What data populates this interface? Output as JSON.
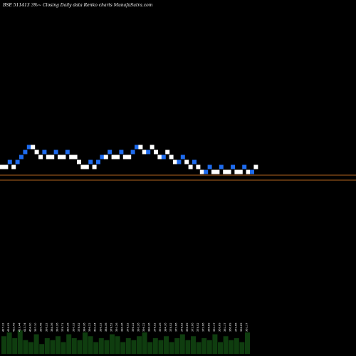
{
  "title": "BSE 511413 3%~   Closing Daily data  Renko  charts MunafaSutra.com",
  "colors": {
    "background": "#000000",
    "up_brick": "#ffffff",
    "down_brick": "#1e6cf0",
    "reference_line": "#b4641e",
    "volume_bar": "#0f3d0f",
    "text": "#ffffff"
  },
  "chart_data": {
    "type": "renko",
    "brick_levels": [
      10,
      10,
      11,
      10,
      11,
      12,
      13,
      14,
      14,
      13,
      12,
      13,
      12,
      12,
      13,
      12,
      12,
      13,
      12,
      12,
      11,
      10,
      10,
      11,
      10,
      11,
      12,
      12,
      13,
      12,
      12,
      13,
      12,
      12,
      13,
      14,
      14,
      13,
      13,
      14,
      13,
      12,
      12,
      13,
      12,
      11,
      11,
      12,
      11,
      10,
      11,
      10,
      9,
      9,
      10,
      9,
      9,
      10,
      9,
      9,
      10,
      9,
      9,
      10,
      9,
      9,
      10
    ],
    "brick_up": [
      true,
      true,
      false,
      true,
      false,
      false,
      false,
      false,
      true,
      true,
      true,
      false,
      true,
      true,
      false,
      true,
      true,
      false,
      true,
      true,
      true,
      true,
      true,
      false,
      true,
      false,
      false,
      true,
      false,
      true,
      true,
      false,
      true,
      true,
      false,
      false,
      true,
      true,
      false,
      true,
      true,
      true,
      false,
      true,
      true,
      true,
      false,
      false,
      true,
      true,
      false,
      true,
      true,
      false,
      false,
      true,
      true,
      false,
      true,
      true,
      false,
      true,
      true,
      false,
      true,
      false,
      true
    ],
    "volume_labels": [
      "427.32",
      "424.05",
      "432.49",
      "419.44",
      "413.74",
      "404.90",
      "397.10",
      "390.46",
      "396.22",
      "384.36",
      "390.26",
      "378.71",
      "384.36",
      "390.32",
      "378.52",
      "384.36",
      "396.22",
      "402.44",
      "396.22",
      "384.36",
      "378.52",
      "390.26",
      "384.36",
      "378.52",
      "396.22",
      "390.26",
      "396.22",
      "384.36",
      "378.52",
      "390.26",
      "384.36",
      "378.52",
      "372.66",
      "378.52",
      "366.89",
      "372.66",
      "378.52",
      "372.66",
      "366.89",
      "361.17",
      "366.89",
      "361.17",
      "366.89",
      "372.66",
      "366.89",
      "361.17"
    ],
    "volume_values": [
      0.45,
      0.55,
      0.4,
      0.6,
      0.35,
      0.3,
      0.5,
      0.25,
      0.4,
      0.35,
      0.45,
      0.3,
      0.5,
      0.4,
      0.35,
      0.55,
      0.45,
      0.3,
      0.4,
      0.35,
      0.5,
      0.45,
      0.3,
      0.4,
      0.35,
      0.45,
      0.55,
      0.3,
      0.4,
      0.35,
      0.45,
      0.3,
      0.4,
      0.5,
      0.35,
      0.45,
      0.3,
      0.4,
      0.35,
      0.5,
      0.3,
      0.45,
      0.35,
      0.4,
      0.3,
      0.55
    ],
    "reference_lines": [
      246,
      253
    ]
  }
}
